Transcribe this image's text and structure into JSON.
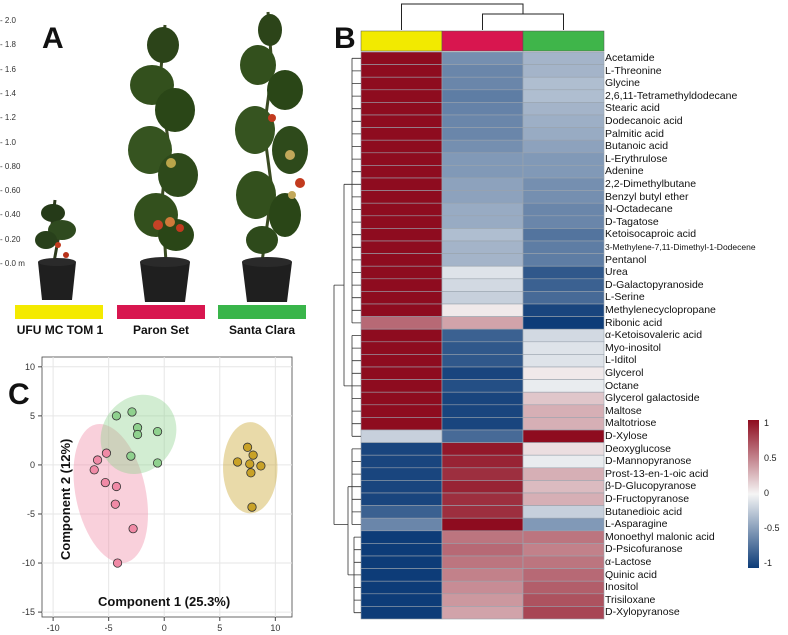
{
  "panels": {
    "a": {
      "letter": "A",
      "scale_ticks": [
        "2.0",
        "1.8",
        "1.6",
        "1.4",
        "1.2",
        "1.0",
        "0.80",
        "0.60",
        "0.40",
        "0.20",
        "0.0 m"
      ],
      "plants": [
        {
          "label": "UFU MC TOM 1",
          "color": "#f4ea00"
        },
        {
          "label": "Paron Set",
          "color": "#d8164f"
        },
        {
          "label": "Santa Clara",
          "color": "#39b54a"
        }
      ]
    },
    "b": {
      "letter": "B",
      "group_colors": [
        "#f2ea00",
        "#d8164f",
        "#3fb54a"
      ],
      "metabolites": [
        "Acetamide",
        "L-Threonine",
        "Glycine",
        "2,6,11-Tetramethyldodecane",
        "Stearic acid",
        "Dodecanoic acid",
        "Palmitic acid",
        "Butanoic acid",
        "L-Erythrulose",
        "Adenine",
        "2,2-Dimethylbutane",
        "Benzyl butyl ether",
        "N-Octadecane",
        "D-Tagatose",
        "Ketoisocaproic acid",
        "3-Methylene-7,11-Dimethyl-1-Dodecene",
        "Pentanol",
        "Urea",
        "D-Galactopyranoside",
        "L-Serine",
        "Methylenecyclopropane",
        "Ribonic acid",
        "α-Ketoisovaleric acid",
        "Myo-inositol",
        "L-Iditol",
        "Glycerol",
        "Octane",
        "Glycerol galactoside",
        "Maltose",
        "Maltotriose",
        "D-Xylose",
        "Deoxyglucose",
        "D-Mannopyranose",
        "Prost-13-en-1-oic acid",
        "β-D-Glucopyranose",
        "D-Fructopyranose",
        "Butanedioic acid",
        "L-Asparagine",
        "Monoethyl malonic acid",
        "D-Psicofuranose",
        "α-Lactose",
        "Quinic acid",
        "Inositol",
        "Trisiloxane",
        "D-Xylopyranose"
      ],
      "values": [
        [
          1,
          -0.55,
          -0.35
        ],
        [
          1,
          -0.6,
          -0.35
        ],
        [
          1,
          -0.6,
          -0.3
        ],
        [
          1,
          -0.65,
          -0.3
        ],
        [
          1,
          -0.62,
          -0.35
        ],
        [
          1,
          -0.6,
          -0.38
        ],
        [
          1,
          -0.6,
          -0.4
        ],
        [
          1,
          -0.55,
          -0.45
        ],
        [
          1,
          -0.5,
          -0.5
        ],
        [
          1,
          -0.5,
          -0.5
        ],
        [
          1,
          -0.45,
          -0.55
        ],
        [
          1,
          -0.45,
          -0.55
        ],
        [
          1,
          -0.4,
          -0.6
        ],
        [
          1,
          -0.4,
          -0.6
        ],
        [
          1,
          -0.3,
          -0.7
        ],
        [
          1,
          -0.35,
          -0.65
        ],
        [
          1,
          -0.35,
          -0.65
        ],
        [
          1,
          -0.1,
          -0.85
        ],
        [
          1,
          -0.15,
          -0.8
        ],
        [
          1,
          -0.2,
          -0.75
        ],
        [
          1,
          0.05,
          -0.95
        ],
        [
          0.6,
          0.35,
          -1
        ],
        [
          1,
          -0.8,
          -0.15
        ],
        [
          1,
          -0.85,
          -0.1
        ],
        [
          1,
          -0.85,
          -0.1
        ],
        [
          1,
          -0.95,
          0.05
        ],
        [
          1,
          -0.9,
          -0.05
        ],
        [
          1,
          -0.95,
          0.2
        ],
        [
          1,
          -0.95,
          0.3
        ],
        [
          1,
          -0.95,
          0.3
        ],
        [
          -0.2,
          -0.75,
          1
        ],
        [
          -0.95,
          0.95,
          0.1
        ],
        [
          -0.95,
          0.9,
          -0.05
        ],
        [
          -0.95,
          0.85,
          0.3
        ],
        [
          -0.95,
          0.9,
          0.25
        ],
        [
          -0.95,
          0.85,
          0.3
        ],
        [
          -0.8,
          0.85,
          -0.2
        ],
        [
          -0.6,
          1,
          -0.5
        ],
        [
          -1,
          0.55,
          0.55
        ],
        [
          -1,
          0.6,
          0.5
        ],
        [
          -1,
          0.55,
          0.55
        ],
        [
          -1,
          0.5,
          0.6
        ],
        [
          -1,
          0.45,
          0.65
        ],
        [
          -1,
          0.4,
          0.7
        ],
        [
          -1,
          0.35,
          0.75
        ]
      ],
      "legend_ticks": [
        "1",
        "0.5",
        "0",
        "-0.5",
        "-1"
      ],
      "scale": {
        "min": -1,
        "max": 1,
        "low": "#0d3c78",
        "mid": "#f5f5f5",
        "high": "#8e0c1f"
      }
    },
    "c": {
      "letter": "C",
      "xlabel": "Component 1 (25.3%)",
      "ylabel": "Component 2 (12%)"
    }
  },
  "chart_data": {
    "type": "scatter",
    "xlim": [
      -11,
      11.5
    ],
    "ylim": [
      -15.5,
      11
    ],
    "xticks": [
      -10,
      -5,
      0,
      5,
      10
    ],
    "yticks": [
      10,
      5,
      0,
      -5,
      -10,
      -15
    ],
    "grid": true,
    "series": [
      {
        "color": "#f08aa6",
        "points": [
          [
            -6.3,
            -0.5
          ],
          [
            -6.0,
            0.5
          ],
          [
            -5.2,
            1.2
          ],
          [
            -5.3,
            -1.8
          ],
          [
            -4.3,
            -2.2
          ],
          [
            -4.4,
            -4.0
          ],
          [
            -2.8,
            -6.5
          ],
          [
            -4.2,
            -10.0
          ]
        ]
      },
      {
        "color": "#8fd18e",
        "points": [
          [
            -4.3,
            5.0
          ],
          [
            -2.9,
            5.4
          ],
          [
            -2.4,
            3.8
          ],
          [
            -2.4,
            3.1
          ],
          [
            -3.0,
            0.9
          ],
          [
            -0.6,
            0.2
          ],
          [
            -0.6,
            3.4
          ]
        ]
      },
      {
        "color": "#c9a227",
        "points": [
          [
            6.6,
            0.3
          ],
          [
            7.5,
            1.8
          ],
          [
            8.0,
            1.0
          ],
          [
            7.7,
            0.1
          ],
          [
            8.7,
            -0.1
          ],
          [
            7.8,
            -0.8
          ],
          [
            7.9,
            -4.3
          ]
        ]
      }
    ]
  }
}
